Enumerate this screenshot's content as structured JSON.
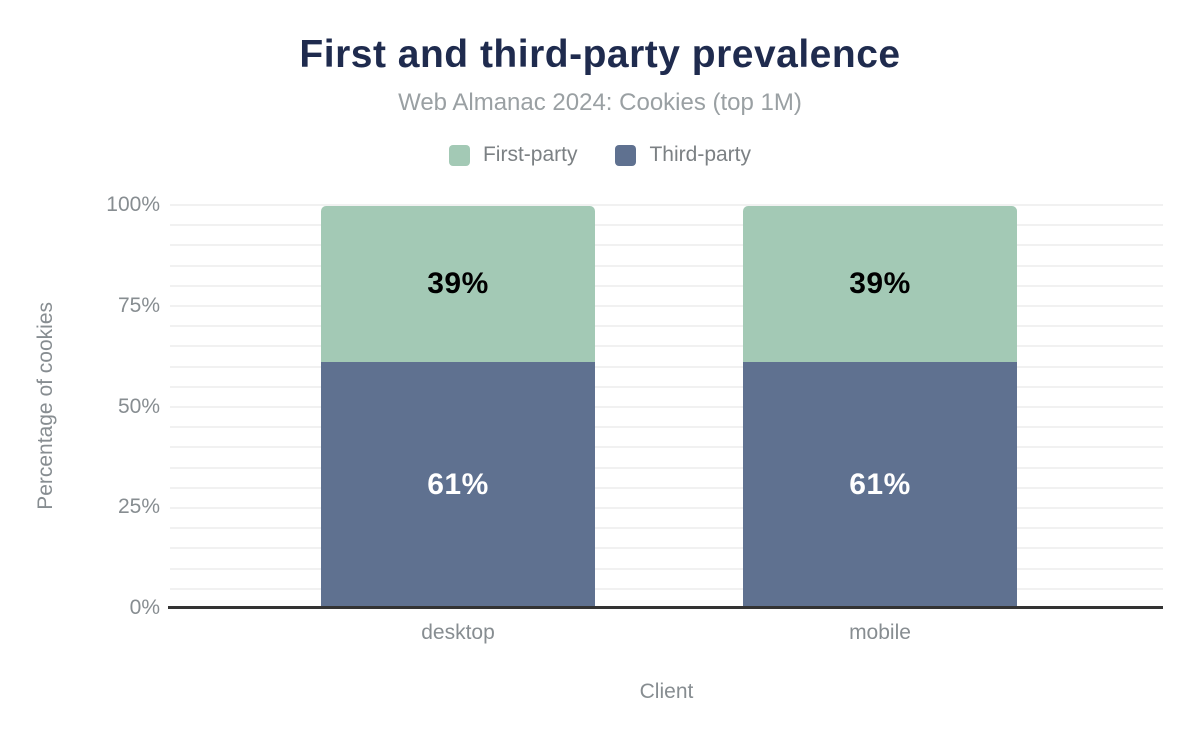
{
  "header": {
    "title": "First and third-party prevalence",
    "subtitle": "Web Almanac 2024: Cookies (top 1M)"
  },
  "legend": {
    "items": [
      {
        "label": "First-party",
        "color": "#a3c9b5"
      },
      {
        "label": "Third-party",
        "color": "#5f7190"
      }
    ]
  },
  "chart_data": {
    "type": "bar",
    "stacked": true,
    "title": "First and third-party prevalence",
    "subtitle": "Web Almanac 2024: Cookies (top 1M)",
    "xlabel": "Client",
    "ylabel": "Percentage of cookies",
    "categories": [
      "desktop",
      "mobile"
    ],
    "series": [
      {
        "name": "Third-party",
        "color": "#5f7190",
        "values": [
          61,
          61
        ],
        "data_labels": [
          "61%",
          "61%"
        ],
        "label_color": "#ffffff"
      },
      {
        "name": "First-party",
        "color": "#a3c9b5",
        "values": [
          39,
          39
        ],
        "data_labels": [
          "39%",
          "39%"
        ],
        "label_color": "#000000"
      }
    ],
    "ylim": [
      0,
      100
    ],
    "ytick_labels": [
      "0%",
      "25%",
      "50%",
      "75%",
      "100%"
    ],
    "grid": {
      "orientation": "horizontal",
      "minor_step_percent": 5,
      "color": "#f1f1f1"
    },
    "legend_position": "top"
  },
  "colors": {
    "first_party": "#a3c9b5",
    "third_party": "#5f7190",
    "title_text": "#1f2b4e",
    "muted_text": "#878d91",
    "axis_line": "#333333",
    "gridline": "#f1f1f1",
    "background": "#ffffff"
  }
}
